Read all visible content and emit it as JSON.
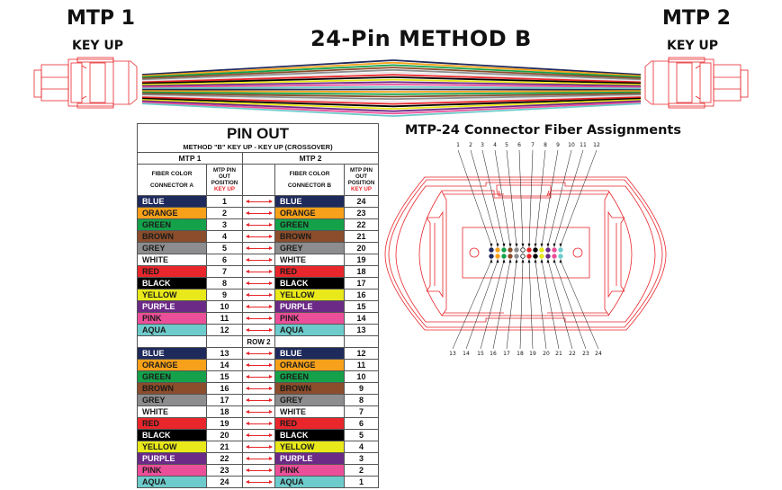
{
  "header": {
    "title": "24-Pin METHOD B",
    "left_connector": {
      "label": "MTP 1",
      "orientation": "KEY UP"
    },
    "right_connector": {
      "label": "MTP 2",
      "orientation": "KEY UP"
    }
  },
  "colors": {
    "connector_outline": "#e8262b",
    "arrow": "#e8262b",
    "table_border": "#555555"
  },
  "fiber_colors": [
    {
      "name": "BLUE",
      "hex": "#1f2a5c",
      "text": "#ffffff"
    },
    {
      "name": "ORANGE",
      "hex": "#f7a11a",
      "text": "#1a1a1a"
    },
    {
      "name": "GREEN",
      "hex": "#14a14a",
      "text": "#1a1a1a"
    },
    {
      "name": "BROWN",
      "hex": "#8b4d2b",
      "text": "#1a1a1a"
    },
    {
      "name": "GREY",
      "hex": "#8d8d8f",
      "text": "#1a1a1a"
    },
    {
      "name": "WHITE",
      "hex": "#ffffff",
      "text": "#1a1a1a"
    },
    {
      "name": "RED",
      "hex": "#e8262b",
      "text": "#1a1a1a"
    },
    {
      "name": "BLACK",
      "hex": "#000000",
      "text": "#ffffff"
    },
    {
      "name": "YELLOW",
      "hex": "#e8e81a",
      "text": "#1a1a1a"
    },
    {
      "name": "PURPLE",
      "hex": "#6b2a86",
      "text": "#ffffff"
    },
    {
      "name": "PINK",
      "hex": "#ec4f9a",
      "text": "#1a1a1a"
    },
    {
      "name": "AQUA",
      "hex": "#6ecbcb",
      "text": "#1a1a1a"
    }
  ],
  "pinout": {
    "title": "PIN OUT",
    "subtitle": "METHOD \"B\" KEY UP - KEY UP  (CROSSOVER)",
    "mtp1_label": "MTP 1",
    "mtp2_label": "MTP 2",
    "col_fiber_a": [
      "FIBER COLOR",
      "CONNECTOR A"
    ],
    "col_fiber_b": [
      "FIBER COLOR",
      "CONNECTOR B"
    ],
    "col_position": [
      "MTP PIN",
      "OUT",
      "POSITION"
    ],
    "col_position_key": "KEY UP",
    "row2_label": "ROW 2",
    "rows_row1": [
      {
        "color_a": "BLUE",
        "pin_a": "1",
        "color_b": "BLUE",
        "pin_b": "24"
      },
      {
        "color_a": "ORANGE",
        "pin_a": "2",
        "color_b": "ORANGE",
        "pin_b": "23"
      },
      {
        "color_a": "GREEN",
        "pin_a": "3",
        "color_b": "GREEN",
        "pin_b": "22"
      },
      {
        "color_a": "BROWN",
        "pin_a": "4",
        "color_b": "BROWN",
        "pin_b": "21"
      },
      {
        "color_a": "GREY",
        "pin_a": "5",
        "color_b": "GREY",
        "pin_b": "20"
      },
      {
        "color_a": "WHITE",
        "pin_a": "6",
        "color_b": "WHITE",
        "pin_b": "19"
      },
      {
        "color_a": "RED",
        "pin_a": "7",
        "color_b": "RED",
        "pin_b": "18"
      },
      {
        "color_a": "BLACK",
        "pin_a": "8",
        "color_b": "BLACK",
        "pin_b": "17"
      },
      {
        "color_a": "YELLOW",
        "pin_a": "9",
        "color_b": "YELLOW",
        "pin_b": "16"
      },
      {
        "color_a": "PURPLE",
        "pin_a": "10",
        "color_b": "PURPLE",
        "pin_b": "15"
      },
      {
        "color_a": "PINK",
        "pin_a": "11",
        "color_b": "PINK",
        "pin_b": "14"
      },
      {
        "color_a": "AQUA",
        "pin_a": "12",
        "color_b": "AQUA",
        "pin_b": "13"
      }
    ],
    "rows_row2": [
      {
        "color_a": "BLUE",
        "pin_a": "13",
        "color_b": "BLUE",
        "pin_b": "12"
      },
      {
        "color_a": "ORANGE",
        "pin_a": "14",
        "color_b": "ORANGE",
        "pin_b": "11"
      },
      {
        "color_a": "GREEN",
        "pin_a": "15",
        "color_b": "GREEN",
        "pin_b": "10"
      },
      {
        "color_a": "BROWN",
        "pin_a": "16",
        "color_b": "BROWN",
        "pin_b": "9"
      },
      {
        "color_a": "GREY",
        "pin_a": "17",
        "color_b": "GREY",
        "pin_b": "8"
      },
      {
        "color_a": "WHITE",
        "pin_a": "18",
        "color_b": "WHITE",
        "pin_b": "7"
      },
      {
        "color_a": "RED",
        "pin_a": "19",
        "color_b": "RED",
        "pin_b": "6"
      },
      {
        "color_a": "BLACK",
        "pin_a": "20",
        "color_b": "BLACK",
        "pin_b": "5"
      },
      {
        "color_a": "YELLOW",
        "pin_a": "21",
        "color_b": "YELLOW",
        "pin_b": "4"
      },
      {
        "color_a": "PURPLE",
        "pin_a": "22",
        "color_b": "PURPLE",
        "pin_b": "3"
      },
      {
        "color_a": "PINK",
        "pin_a": "23",
        "color_b": "PINK",
        "pin_b": "2"
      },
      {
        "color_a": "AQUA",
        "pin_a": "24",
        "color_b": "AQUA",
        "pin_b": "1"
      }
    ]
  },
  "connector_diagram": {
    "title": "MTP-24 Connector Fiber Assignments",
    "top_pins": [
      "1",
      "2",
      "3",
      "4",
      "5",
      "6",
      "7",
      "8",
      "9",
      "10",
      "11",
      "12"
    ],
    "bottom_pins": [
      "13",
      "14",
      "15",
      "16",
      "17",
      "18",
      "19",
      "20",
      "21",
      "22",
      "23",
      "24"
    ]
  }
}
